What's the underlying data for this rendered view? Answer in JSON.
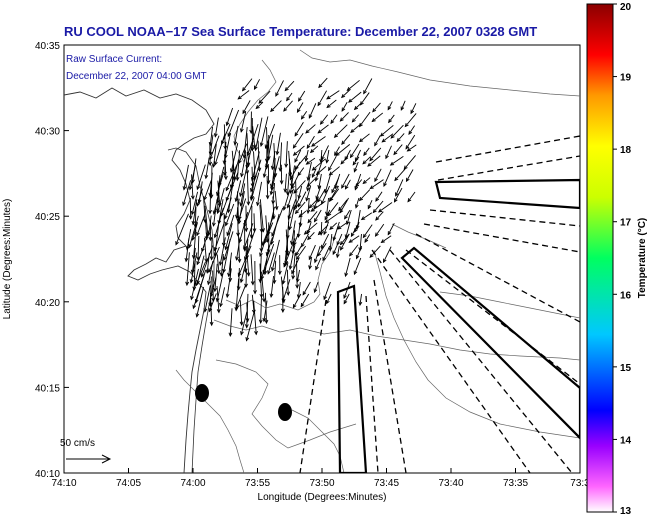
{
  "title": "RU COOL  NOAA−17  Sea Surface Temperature:  December 22, 2007 0328 GMT",
  "inset": {
    "line1": "Raw Surface Current:",
    "line2": "December 22, 2007 04:00 GMT"
  },
  "scale_label": "50 cm/s",
  "x_axis": {
    "label": "Longitude (Degrees:Minutes)",
    "ticks": [
      "74:10",
      "74:05",
      "74:00",
      "73:55",
      "73:50",
      "73:45",
      "73:40",
      "73:35",
      "73:3"
    ]
  },
  "y_axis": {
    "label": "Latitude (Degrees:Minutes)",
    "ticks": [
      "40:35",
      "40:30",
      "40:25",
      "40:20",
      "40:15",
      "40:10"
    ]
  },
  "colorbar": {
    "label": "Temperature (°C)",
    "ticks": [
      "20",
      "19",
      "18",
      "17",
      "16",
      "15",
      "14",
      "13"
    ],
    "stops": [
      "#ff00ff",
      "#0000ff",
      "#00d0ff",
      "#00ff40",
      "#ffff00",
      "#ff7f00",
      "#ff0000",
      "#800000"
    ]
  }
}
